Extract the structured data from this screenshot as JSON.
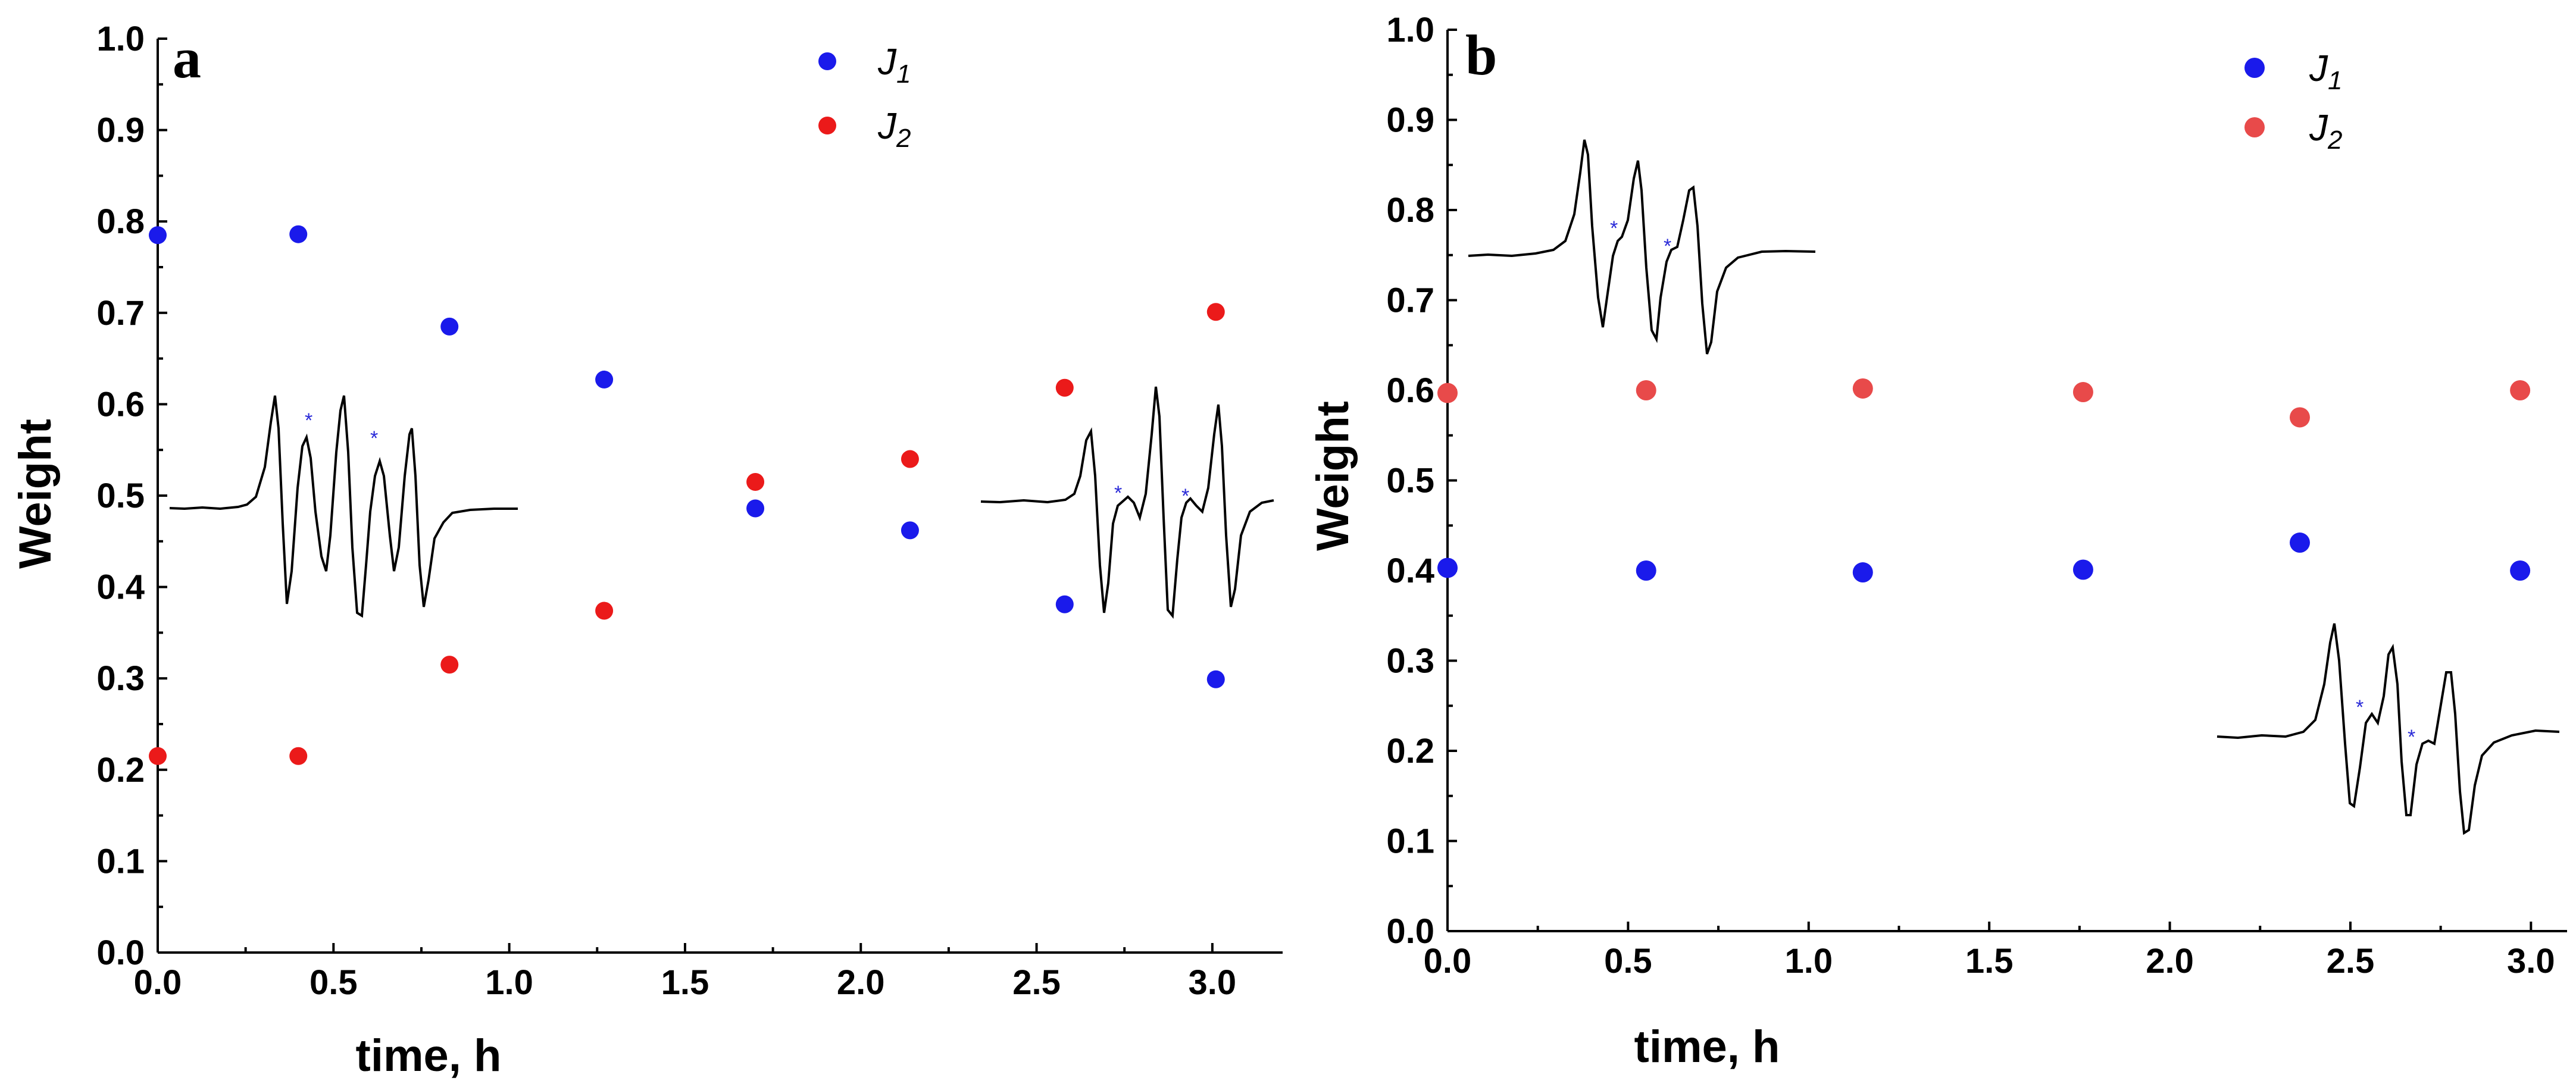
{
  "chart_data": [
    {
      "panel": "a",
      "type": "scatter",
      "xlabel": "time, h",
      "ylabel": "Weight",
      "xlim": [
        0.0,
        3.2
      ],
      "ylim": [
        0.0,
        1.0
      ],
      "xticks": [
        "0.0",
        "0.5",
        "1.0",
        "1.5",
        "2.0",
        "2.5",
        "3.0"
      ],
      "yticks": [
        "0.0",
        "0.1",
        "0.2",
        "0.3",
        "0.4",
        "0.5",
        "0.6",
        "0.7",
        "0.8",
        "0.9",
        "1.0"
      ],
      "legend": {
        "position": "top-center",
        "entries": [
          {
            "name": "J",
            "sub": "1"
          },
          {
            "name": "J",
            "sub": "2"
          }
        ]
      },
      "series": [
        {
          "name": "J1",
          "color": "#1a1aeb",
          "x": [
            0.0,
            0.4,
            0.83,
            1.27,
            1.7,
            2.14,
            2.58,
            3.01
          ],
          "y": [
            0.785,
            0.786,
            0.685,
            0.627,
            0.486,
            0.462,
            0.381,
            0.299
          ]
        },
        {
          "name": "J2",
          "color": "#eb1a1a",
          "x": [
            0.0,
            0.4,
            0.83,
            1.27,
            1.7,
            2.14,
            2.58,
            3.01
          ],
          "y": [
            0.215,
            0.215,
            0.315,
            0.374,
            0.515,
            0.54,
            0.618,
            0.701
          ]
        }
      ],
      "insets": [
        "epr-spectrum-left",
        "epr-spectrum-right"
      ]
    },
    {
      "panel": "b",
      "type": "scatter",
      "xlabel": "time, h",
      "ylabel": "Weight",
      "xlim": [
        0.0,
        3.1
      ],
      "ylim": [
        0.0,
        1.0
      ],
      "xticks": [
        "0.0",
        "0.5",
        "1.0",
        "1.5",
        "2.0",
        "2.5",
        "3.0"
      ],
      "yticks": [
        "0.0",
        "0.1",
        "0.2",
        "0.3",
        "0.4",
        "0.5",
        "0.6",
        "0.7",
        "0.8",
        "0.9",
        "1.0"
      ],
      "legend": {
        "position": "top-right",
        "entries": [
          {
            "name": "J",
            "sub": "1"
          },
          {
            "name": "J",
            "sub": "2"
          }
        ]
      },
      "series": [
        {
          "name": "J1",
          "color": "#1a1aeb",
          "x": [
            0.0,
            0.55,
            1.15,
            1.76,
            2.36,
            2.97
          ],
          "y": [
            0.403,
            0.4,
            0.398,
            0.401,
            0.431,
            0.4
          ]
        },
        {
          "name": "J2",
          "color": "#e84a4a",
          "x": [
            0.0,
            0.55,
            1.15,
            1.76,
            2.36,
            2.97
          ],
          "y": [
            0.597,
            0.6,
            0.602,
            0.598,
            0.57,
            0.6
          ]
        }
      ],
      "insets": [
        "epr-spectrum-top",
        "epr-spectrum-bottom"
      ]
    }
  ]
}
